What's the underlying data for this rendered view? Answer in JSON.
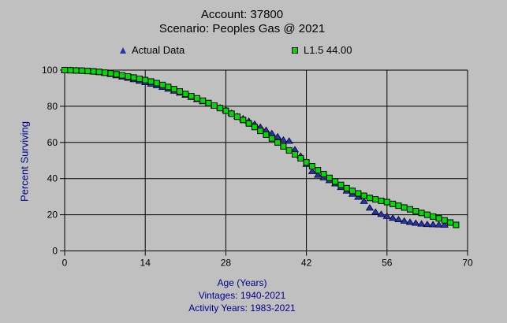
{
  "title": {
    "line1": "Account: 37800",
    "line2": "Scenario: Peoples Gas @ 2021"
  },
  "legend": [
    {
      "label": "Actual Data",
      "marker": "triangle",
      "color": "#2433b0"
    },
    {
      "label": "L1.5 44.00",
      "marker": "square",
      "color": "#00db00"
    }
  ],
  "axes": {
    "x": {
      "label": "Age (Years)",
      "ticks": [
        0,
        14,
        28,
        42,
        56,
        70
      ]
    },
    "y": {
      "label": "Percent Surviving",
      "ticks": [
        0,
        20,
        40,
        60,
        80,
        100
      ]
    }
  },
  "footnotes": [
    "Vintages: 1940-2021",
    "Activity Years: 1983-2021"
  ],
  "colors": {
    "background": "#c0c0c0",
    "grid": "#000000",
    "tick_text": "#000000",
    "title_text": "#000000",
    "axis_label_text": "#00008b",
    "footnote_text": "#00008b",
    "actual_marker_fill": "#2433b0",
    "actual_marker_stroke": "#000022",
    "fitted_marker_fill": "#00db00",
    "fitted_marker_stroke": "#000000"
  },
  "chart_data": {
    "type": "scatter",
    "title": "Account: 37800 — Scenario: Peoples Gas @ 2021",
    "xlabel": "Age (Years)",
    "ylabel": "Percent Surviving",
    "xlim": [
      0,
      70
    ],
    "ylim": [
      0,
      100
    ],
    "xticks": [
      0,
      14,
      28,
      42,
      56,
      70
    ],
    "yticks": [
      0,
      20,
      40,
      60,
      80,
      100
    ],
    "grid": true,
    "legend_position": "top",
    "series": [
      {
        "name": "Actual Data",
        "marker": "triangle",
        "color": "#2433b0",
        "x": [
          0,
          1,
          2,
          3,
          4,
          5,
          6,
          7,
          8,
          9,
          10,
          11,
          12,
          13,
          14,
          15,
          16,
          17,
          18,
          19,
          20,
          21,
          22,
          23,
          24,
          25,
          26,
          27,
          28,
          29,
          30,
          31,
          32,
          33,
          34,
          35,
          36,
          37,
          38,
          39,
          40,
          41,
          42,
          43,
          44,
          45,
          46,
          47,
          48,
          49,
          50,
          51,
          52,
          53,
          54,
          55,
          56,
          57,
          58,
          59,
          60,
          61,
          62,
          63,
          64,
          65,
          66
        ],
        "y": [
          100,
          99.9,
          99.8,
          99.7,
          99.5,
          99.2,
          98.8,
          98.3,
          97.7,
          97.0,
          96.3,
          95.6,
          94.8,
          94.0,
          93.2,
          92.4,
          91.5,
          90.6,
          89.6,
          88.5,
          87.4,
          86.2,
          85.0,
          83.8,
          82.6,
          81.4,
          80.3,
          79.2,
          78.0,
          76.3,
          74.4,
          73.2,
          71.8,
          70.2,
          68.5,
          66.8,
          65.0,
          63.2,
          61.4,
          60.8,
          56.0,
          52.5,
          48.0,
          44.0,
          42.0,
          40.5,
          39.0,
          37.2,
          35.2,
          33.2,
          31.5,
          29.8,
          27.5,
          23.8,
          21.5,
          20.3,
          19.2,
          18.2,
          17.4,
          16.6,
          15.9,
          15.4,
          15.0,
          14.7,
          14.6,
          14.5,
          14.4
        ]
      },
      {
        "name": "L1.5 44.00",
        "marker": "square",
        "color": "#00db00",
        "x": [
          0,
          1,
          2,
          3,
          4,
          5,
          6,
          7,
          8,
          9,
          10,
          11,
          12,
          13,
          14,
          15,
          16,
          17,
          18,
          19,
          20,
          21,
          22,
          23,
          24,
          25,
          26,
          27,
          28,
          29,
          30,
          31,
          32,
          33,
          34,
          35,
          36,
          37,
          38,
          39,
          40,
          41,
          42,
          43,
          44,
          45,
          46,
          47,
          48,
          49,
          50,
          51,
          52,
          53,
          54,
          55,
          56,
          57,
          58,
          59,
          60,
          61,
          62,
          63,
          64,
          65,
          66,
          67,
          68
        ],
        "y": [
          100,
          99.9,
          99.8,
          99.7,
          99.5,
          99.3,
          99.0,
          98.6,
          98.2,
          97.7,
          97.1,
          96.5,
          95.9,
          95.2,
          94.5,
          93.7,
          92.8,
          91.8,
          90.7,
          89.5,
          88.2,
          86.8,
          85.6,
          84.4,
          83.1,
          81.8,
          80.4,
          79.0,
          77.5,
          75.9,
          74.2,
          72.4,
          70.5,
          68.5,
          66.4,
          64.3,
          62.2,
          60.0,
          57.8,
          55.6,
          53.4,
          51.2,
          49.0,
          46.8,
          44.6,
          42.5,
          40.4,
          38.4,
          36.5,
          34.7,
          33.2,
          31.8,
          30.5,
          29.3,
          28.5,
          27.7,
          27.0,
          26.0,
          25.0,
          24.0,
          23.0,
          22.0,
          21.0,
          20.0,
          19.0,
          18.0,
          16.9,
          15.7,
          14.4
        ]
      }
    ]
  }
}
